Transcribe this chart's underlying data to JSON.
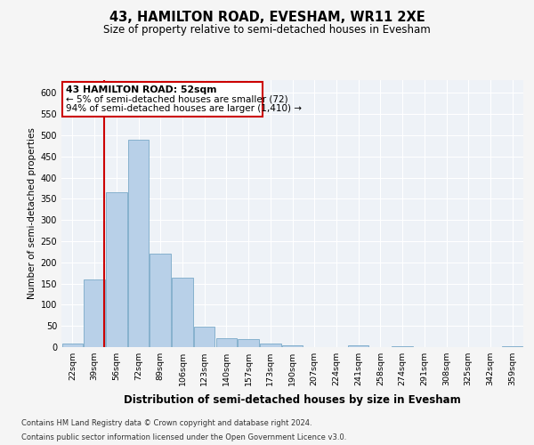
{
  "title": "43, HAMILTON ROAD, EVESHAM, WR11 2XE",
  "subtitle": "Size of property relative to semi-detached houses in Evesham",
  "xlabel": "Distribution of semi-detached houses by size in Evesham",
  "ylabel": "Number of semi-detached properties",
  "footer_line1": "Contains HM Land Registry data © Crown copyright and database right 2024.",
  "footer_line2": "Contains public sector information licensed under the Open Government Licence v3.0.",
  "bar_labels": [
    "22sqm",
    "39sqm",
    "56sqm",
    "72sqm",
    "89sqm",
    "106sqm",
    "123sqm",
    "140sqm",
    "157sqm",
    "173sqm",
    "190sqm",
    "207sqm",
    "224sqm",
    "241sqm",
    "258sqm",
    "274sqm",
    "291sqm",
    "308sqm",
    "325sqm",
    "342sqm",
    "359sqm"
  ],
  "bar_values": [
    8,
    160,
    365,
    490,
    220,
    163,
    48,
    22,
    18,
    8,
    5,
    1,
    0,
    5,
    0,
    2,
    0,
    0,
    0,
    0,
    2
  ],
  "bar_color": "#b8d0e8",
  "bar_edge_color": "#7aaac8",
  "bg_color": "#eef2f7",
  "grid_color": "#ffffff",
  "annotation_line1": "43 HAMILTON ROAD: 52sqm",
  "annotation_line2": "← 5% of semi-detached houses are smaller (72)",
  "annotation_line3": "94% of semi-detached houses are larger (1,410) →",
  "annotation_box_color": "#ffffff",
  "annotation_box_edge": "#cc0000",
  "property_line_color": "#cc0000",
  "property_line_x": 1.45,
  "ylim": [
    0,
    630
  ],
  "yticks": [
    0,
    50,
    100,
    150,
    200,
    250,
    300,
    350,
    400,
    450,
    500,
    550,
    600
  ],
  "fig_bg": "#f5f5f5"
}
